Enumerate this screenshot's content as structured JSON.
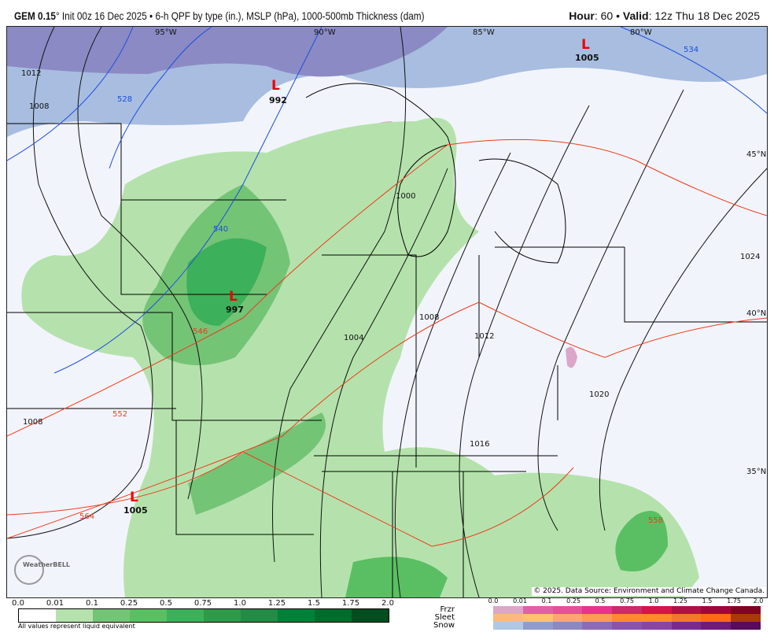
{
  "header": {
    "model": "GEM 0.15",
    "model_suffix": "° Init 00z 16 Dec 2025 • 6-h QPF by type (in.), MSLP (hPa), 1000-500mb Thickness (dam)",
    "hour_label": "Hour",
    "hour": ": 60 • ",
    "valid_label": "Valid",
    "valid": ": 12z Thu 18 Dec 2025"
  },
  "map": {
    "longitudes": [
      "95°W",
      "90°W",
      "85°W",
      "80°W"
    ],
    "latitudes": [
      "45°N",
      "40°N",
      "35°N"
    ],
    "lows": [
      {
        "symbol": "L",
        "pressure": "1005"
      },
      {
        "symbol": "L",
        "pressure": "992"
      },
      {
        "symbol": "L",
        "pressure": "997"
      },
      {
        "symbol": "L",
        "pressure": "1005"
      }
    ],
    "isobar_labels": [
      "1012",
      "1008",
      "1000",
      "1004",
      "1008",
      "1012",
      "1016",
      "1020",
      "1024",
      "1008"
    ],
    "thickness_labels": [
      "534",
      "528",
      "540",
      "546",
      "552",
      "558",
      "564"
    ],
    "copyright": "© 2025. Data Source: Environment and Climate Change Canada.",
    "logo": "WeatherBELL"
  },
  "legend": {
    "rain_ticks": [
      "0.0",
      "0.01",
      "0.1",
      "0.25",
      "0.5",
      "0.75",
      "1.0",
      "1.25",
      "1.5",
      "1.75",
      "2.0"
    ],
    "rain_colors": [
      "#ffffff",
      "#b5e2ac",
      "#74c476",
      "#5abf62",
      "#3cb05a",
      "#2e9a4a",
      "#238b45",
      "#00813a",
      "#006d2c",
      "#004d1f"
    ],
    "note": "All values represent liquid equivalent",
    "ptype_ticks": [
      "0.0",
      "0.01",
      "0.1",
      "0.25",
      "0.5",
      "0.75",
      "1.0",
      "1.25",
      "1.5",
      "1.75",
      "2.0"
    ],
    "types": [
      {
        "name": "Frzr",
        "colors": [
          "#dba6c9",
          "#e060aa",
          "#e4509c",
          "#e6338f",
          "#cc2a6a",
          "#d4144c",
          "#b0104a",
          "#a0063e",
          "#7e0420"
        ]
      },
      {
        "name": "Sleet",
        "colors": [
          "#fbb97e",
          "#fec36b",
          "#fda670",
          "#fa9c52",
          "#fe8a30",
          "#fe8a2c",
          "#f07a2a",
          "#fe6a14",
          "#aa3a05"
        ]
      },
      {
        "name": "Snow",
        "colors": [
          "#b0c8e4",
          "#909cce",
          "#8c88c2",
          "#8c6ab8",
          "#8a54ac",
          "#8a44a4",
          "#7a2a8e",
          "#701a7a",
          "#560c5a"
        ]
      }
    ]
  }
}
